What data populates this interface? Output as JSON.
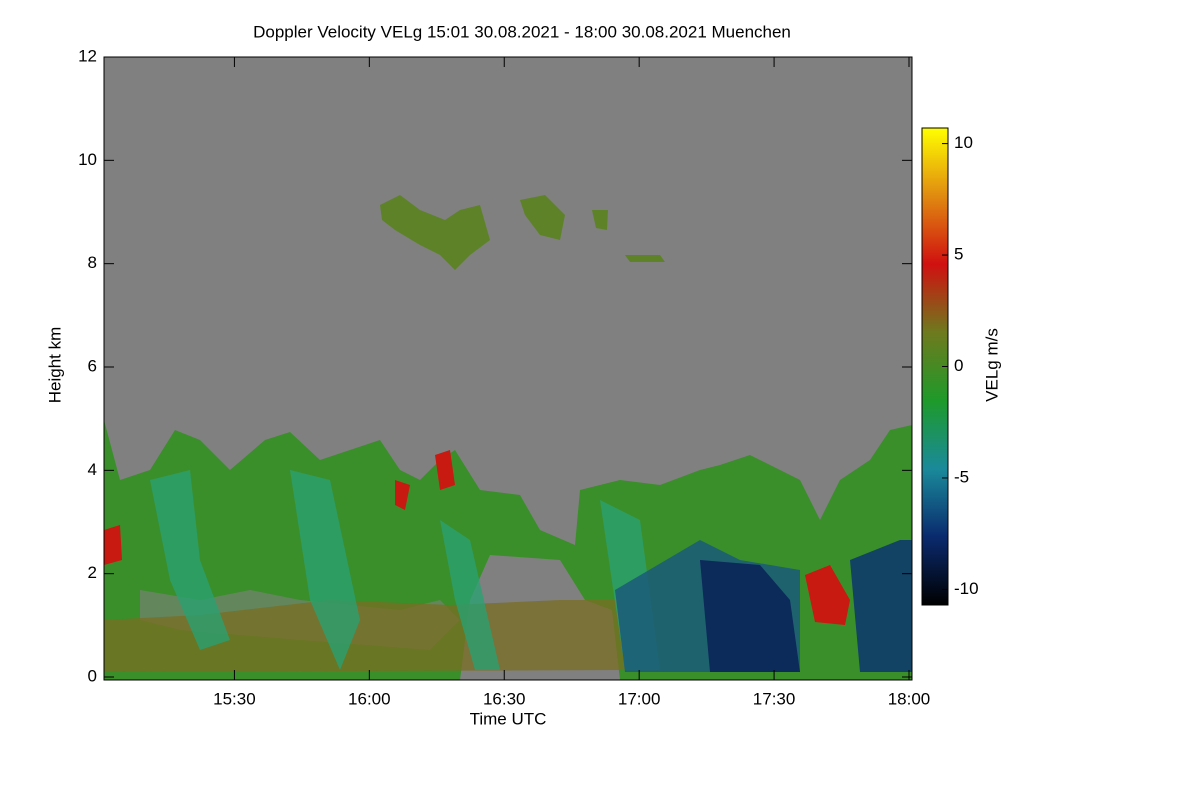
{
  "chart_data": {
    "type": "heatmap",
    "title": "Doppler Velocity VELg   15:01 30.08.2021 - 18:00 30.08.2021 Muenchen",
    "xlabel": "Time UTC",
    "ylabel": "Height km",
    "xlim": [
      "15:01",
      "18:00"
    ],
    "xticks": [
      "15:30",
      "16:00",
      "16:30",
      "17:00",
      "17:30",
      "18:00"
    ],
    "ylim": [
      0,
      12
    ],
    "yticks": [
      0,
      2,
      4,
      6,
      8,
      10,
      12
    ],
    "colorbar": {
      "label": "VELg m/s",
      "lim": [
        -10.7,
        10.7
      ],
      "ticks": [
        -10,
        -5,
        0,
        5,
        10
      ],
      "colormap": [
        "#000000",
        "#0a2a6e",
        "#1a8a9a",
        "#1e9a2a",
        "#6e7a1e",
        "#d01010",
        "#e08a10",
        "#ffff00"
      ]
    },
    "background": "#808080"
  }
}
